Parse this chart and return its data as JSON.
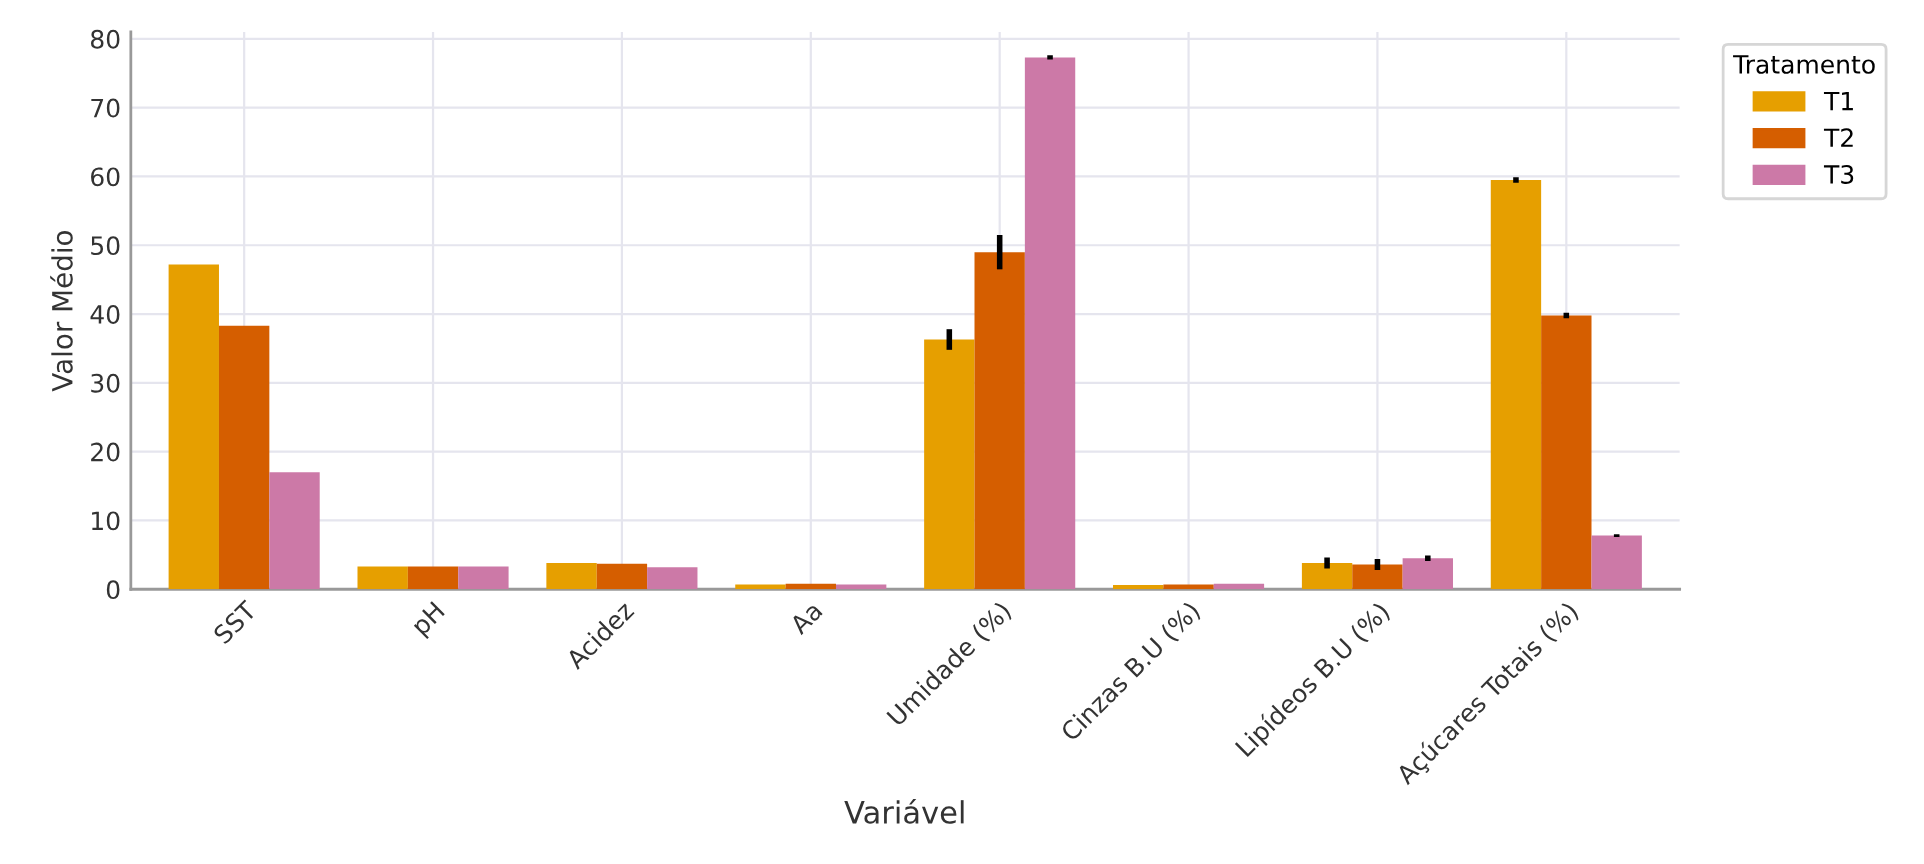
{
  "chart_data": {
    "type": "bar",
    "xlabel": "Variável",
    "ylabel": "Valor Médio",
    "legend_title": "Tratamento",
    "categories": [
      "SST",
      "pH",
      "Acidez",
      "Aa",
      "Umidade (%)",
      "Cinzas B.U (%)",
      "Lipídeos B.U (%)",
      "Açúcares Totais (%)"
    ],
    "series": [
      {
        "name": "T1",
        "color": "#e69f00",
        "values": [
          47.2,
          3.3,
          3.8,
          0.7,
          36.3,
          0.6,
          3.8,
          59.5
        ],
        "errors": [
          null,
          null,
          null,
          null,
          1.5,
          null,
          0.8,
          0.4
        ]
      },
      {
        "name": "T2",
        "color": "#d55e00",
        "values": [
          38.3,
          3.3,
          3.7,
          0.8,
          49.0,
          0.7,
          3.6,
          39.8
        ],
        "errors": [
          null,
          null,
          null,
          null,
          2.5,
          null,
          0.8,
          0.4
        ]
      },
      {
        "name": "T3",
        "color": "#cc79a7",
        "values": [
          17.0,
          3.3,
          3.2,
          0.7,
          77.3,
          0.8,
          4.5,
          7.8
        ],
        "errors": [
          null,
          null,
          null,
          null,
          0.3,
          null,
          0.4,
          0.2
        ]
      }
    ],
    "ylim": [
      0,
      81
    ],
    "yticks": [
      0,
      10,
      20,
      30,
      40,
      50,
      60,
      70,
      80
    ],
    "grid": true,
    "legend": "top right"
  }
}
